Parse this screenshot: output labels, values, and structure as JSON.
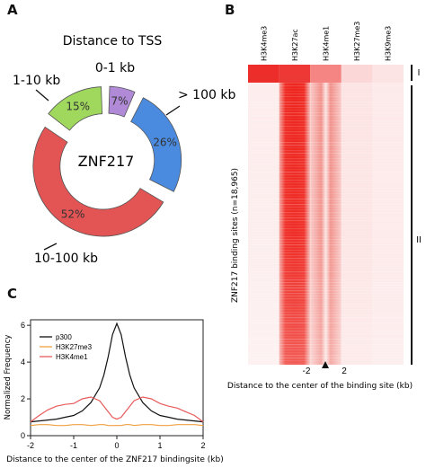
{
  "panels": {
    "a": "A",
    "b": "B",
    "c": "C"
  },
  "chart_data": [
    {
      "type": "pie",
      "panel": "A",
      "title": "Distance to TSS",
      "center_label": "ZNF217",
      "style": "donut, slices slightly exploded",
      "slices": [
        {
          "label": "0-1 kb",
          "percent_label": "7%",
          "value": 7,
          "color": "#b08ad6"
        },
        {
          "label": "> 100 kb",
          "percent_label": "26%",
          "value": 26,
          "color": "#4a8be0"
        },
        {
          "label": "10-100 kb",
          "percent_label": "52%",
          "value": 52,
          "color": "#e35454"
        },
        {
          "label": "1-10 kb",
          "percent_label": "15%",
          "value": 15,
          "color": "#9fd85c"
        }
      ]
    },
    {
      "type": "heatmap",
      "panel": "B",
      "columns": [
        "H3K4me3",
        "H3K27ac",
        "H3K4me1",
        "H3K27me3",
        "H3K9me3"
      ],
      "ylabel": "ZNF217 binding sites (n=18,965)",
      "xlabel": "Distance to the center of the binding site (kb)",
      "x_ticks": [
        "-2",
        "2"
      ],
      "clusters": [
        "I",
        "II"
      ],
      "cluster_fraction": [
        0.06,
        0.94
      ],
      "color": "#e8221e",
      "column_intensity": {
        "H3K4me3": {
          "cluster_I": 0.95,
          "cluster_II": 0.08
        },
        "H3K27ac": {
          "cluster_I": 0.9,
          "cluster_II": 0.7
        },
        "H3K4me1": {
          "cluster_I": 0.55,
          "cluster_II": 0.35
        },
        "H3K27me3": {
          "cluster_I": 0.18,
          "cluster_II": 0.12
        },
        "H3K9me3": {
          "cluster_I": 0.12,
          "cluster_II": 0.1
        }
      }
    },
    {
      "type": "line",
      "panel": "C",
      "xlabel": "Distance to the center of the ZNF217 bindingsite (kb)",
      "ylabel": "Normalized Frequency",
      "xlim": [
        -2,
        2
      ],
      "ylim": [
        0,
        6.3
      ],
      "x_ticks": [
        -2,
        -1,
        0,
        1,
        2
      ],
      "y_ticks": [
        0,
        2,
        4,
        6
      ],
      "legend_position": "top-left",
      "x": [
        -2,
        -1.8,
        -1.6,
        -1.4,
        -1.2,
        -1.0,
        -0.8,
        -0.6,
        -0.4,
        -0.3,
        -0.2,
        -0.1,
        0,
        0.1,
        0.2,
        0.3,
        0.4,
        0.6,
        0.8,
        1.0,
        1.2,
        1.4,
        1.6,
        1.8,
        2
      ],
      "series": [
        {
          "name": "p300",
          "color": "#111111",
          "values": [
            0.75,
            0.8,
            0.85,
            0.9,
            1.0,
            1.1,
            1.35,
            1.8,
            2.6,
            3.3,
            4.3,
            5.5,
            6.1,
            5.5,
            4.3,
            3.3,
            2.6,
            1.8,
            1.35,
            1.1,
            1.0,
            0.9,
            0.85,
            0.8,
            0.75
          ]
        },
        {
          "name": "H3K27me3",
          "color": "#f0a040",
          "values": [
            0.55,
            0.6,
            0.6,
            0.55,
            0.55,
            0.6,
            0.6,
            0.55,
            0.6,
            0.6,
            0.55,
            0.55,
            0.55,
            0.55,
            0.6,
            0.6,
            0.55,
            0.6,
            0.6,
            0.55,
            0.55,
            0.6,
            0.6,
            0.6,
            0.55
          ]
        },
        {
          "name": "H3K4me1",
          "color": "#e85a5a",
          "values": [
            0.75,
            1.1,
            1.4,
            1.6,
            1.7,
            1.75,
            2.0,
            2.1,
            1.9,
            1.6,
            1.3,
            1.0,
            0.9,
            1.0,
            1.3,
            1.6,
            1.9,
            2.1,
            2.0,
            1.75,
            1.6,
            1.5,
            1.3,
            1.1,
            0.75
          ]
        }
      ]
    }
  ]
}
